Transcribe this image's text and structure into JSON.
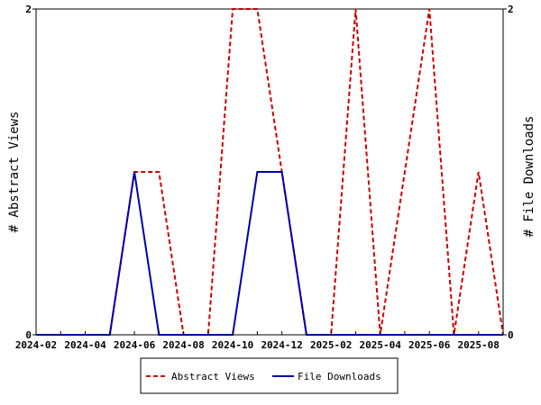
{
  "chart_data": {
    "type": "line",
    "x": [
      "2024-02",
      "2024-03",
      "2024-04",
      "2024-05",
      "2024-06",
      "2024-07",
      "2024-08",
      "2024-09",
      "2024-10",
      "2024-11",
      "2024-12",
      "2025-01",
      "2025-02",
      "2025-03",
      "2025-04",
      "2025-05",
      "2025-06",
      "2025-07",
      "2025-08",
      "2025-09"
    ],
    "x_tick_labels": [
      "2024-02",
      "2024-04",
      "2024-06",
      "2024-08",
      "2024-10",
      "2024-12",
      "2025-02",
      "2025-04",
      "2025-06",
      "2025-08"
    ],
    "series": [
      {
        "name": "Abstract Views",
        "color": "#cc0000",
        "dash": "dashed",
        "axis": "left",
        "values": [
          0,
          0,
          0,
          0,
          1,
          1,
          0,
          0,
          2,
          2,
          1,
          0,
          0,
          2,
          0,
          1,
          2,
          0,
          1,
          0
        ]
      },
      {
        "name": "File Downloads",
        "color": "#0000aa",
        "dash": "solid",
        "axis": "right",
        "values": [
          0,
          0,
          0,
          0,
          1,
          0,
          0,
          0,
          0,
          1,
          1,
          0,
          0,
          0,
          0,
          0,
          0,
          0,
          0,
          0
        ]
      }
    ],
    "ylabel_left": "# Abstract Views",
    "ylabel_right": "# File Downloads",
    "ylim_left": [
      0,
      2
    ],
    "ylim_right": [
      0,
      2
    ],
    "y_ticks_left": [
      "0",
      "2"
    ],
    "y_ticks_right": [
      "0",
      "2"
    ],
    "grid": false,
    "legend_position": "bottom"
  }
}
